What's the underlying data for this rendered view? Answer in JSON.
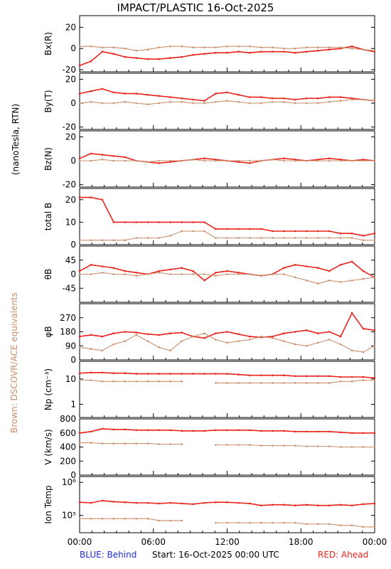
{
  "header": {
    "title": "IMPACT/PLASTIC   16-Oct-2025"
  },
  "side_labels": {
    "units": "(nanoTesla, RTN)",
    "brown_note": "Brown: DSCOVR/ACE equivalents"
  },
  "footer": {
    "blue_label": "BLUE: Behind",
    "start_label": "Start: 16-Oct-2025 00:00 UTC",
    "red_label": "RED: Ahead"
  },
  "colors": {
    "ahead": "#e8231c",
    "ace": "#c9906e",
    "blue": "#1a2ad6"
  },
  "chart_data": {
    "type": "line",
    "x_ticks": [
      "00:00",
      "06:00",
      "12:00",
      "18:00",
      "00:00"
    ],
    "x_range_hours": [
      0,
      24
    ],
    "panels": [
      {
        "id": "bx",
        "ylabel": "Bx(R)",
        "ylim": [
          -22,
          31
        ],
        "yticks": [
          "-20",
          "0",
          "20"
        ],
        "ytick_values": [
          -20,
          0,
          20
        ],
        "series": [
          {
            "values": [
              -16,
              -12,
              -3,
              -5,
              -8,
              -9,
              -10,
              -10,
              -9,
              -8,
              -6,
              -5,
              -4,
              -4,
              -3,
              -4,
              -3,
              -3,
              -3,
              -4,
              -3,
              -2,
              -1,
              0,
              2,
              -1,
              -3
            ]
          },
          {
            "values": [
              2,
              2,
              1,
              1,
              0,
              -2,
              -1,
              1,
              2,
              2,
              1,
              1,
              1,
              2,
              2,
              2,
              1,
              1,
              0,
              0,
              1,
              1,
              1,
              1,
              0,
              -1,
              -2
            ]
          }
        ]
      },
      {
        "id": "by",
        "ylabel": "By(T)",
        "ylim": [
          -22,
          25
        ],
        "yticks": [
          "-20",
          "0",
          "20"
        ],
        "ytick_values": [
          -20,
          0,
          20
        ],
        "series": [
          {
            "values": [
              8,
              10,
              12,
              9,
              8,
              8,
              7,
              6,
              5,
              4,
              3,
              2,
              8,
              9,
              7,
              5,
              5,
              4,
              4,
              3,
              4,
              4,
              5,
              5,
              4,
              3,
              2
            ]
          },
          {
            "values": [
              0,
              1,
              0,
              0,
              1,
              0,
              -1,
              0,
              1,
              1,
              0,
              0,
              1,
              2,
              1,
              0,
              0,
              1,
              1,
              0,
              0,
              0,
              1,
              2,
              3,
              3,
              2
            ]
          }
        ]
      },
      {
        "id": "bz",
        "ylabel": "Bz(N)",
        "ylim": [
          -22,
          25
        ],
        "yticks": [
          "-20",
          "0",
          "20"
        ],
        "ytick_values": [
          -20,
          0,
          20
        ],
        "series": [
          {
            "values": [
              2,
              6,
              5,
              4,
              3,
              0,
              -1,
              -2,
              -1,
              0,
              1,
              2,
              1,
              0,
              -1,
              -2,
              0,
              1,
              2,
              1,
              0,
              1,
              2,
              1,
              0,
              1,
              0
            ]
          },
          {
            "values": [
              0,
              0,
              1,
              0,
              0,
              0,
              -1,
              0,
              0,
              0,
              1,
              0,
              0,
              0,
              0,
              0,
              0,
              1,
              0,
              0,
              0,
              0,
              0,
              0,
              0,
              0,
              0
            ]
          }
        ]
      },
      {
        "id": "btot",
        "ylabel": "total B",
        "ylim": [
          0,
          25
        ],
        "yticks": [
          "0",
          "10",
          "20"
        ],
        "ytick_values": [
          0,
          10,
          20
        ],
        "series": [
          {
            "values": [
              21,
              21,
              20,
              10,
              10,
              10,
              10,
              10,
              10,
              10,
              10,
              10,
              7,
              7,
              7,
              7,
              7,
              6,
              6,
              6,
              6,
              6,
              6,
              5,
              5,
              4,
              5
            ]
          },
          {
            "values": [
              2,
              2,
              2,
              2,
              2,
              3,
              3,
              3,
              4,
              6,
              6,
              6,
              3,
              3,
              3,
              3,
              3,
              3,
              3,
              3,
              3,
              3,
              3,
              3,
              3,
              2,
              2
            ]
          }
        ]
      },
      {
        "id": "theta",
        "ylabel": "θB",
        "ylim": [
          -90,
          90
        ],
        "yticks": [
          "-45",
          "0",
          "45"
        ],
        "ytick_values": [
          -45,
          0,
          45
        ],
        "series": [
          {
            "values": [
              10,
              30,
              25,
              20,
              10,
              5,
              0,
              10,
              15,
              20,
              10,
              -20,
              5,
              10,
              5,
              0,
              -5,
              0,
              20,
              30,
              25,
              20,
              10,
              30,
              40,
              10,
              -10
            ]
          },
          {
            "values": [
              0,
              0,
              5,
              0,
              0,
              -5,
              0,
              5,
              0,
              0,
              0,
              0,
              -5,
              0,
              0,
              0,
              -5,
              0,
              0,
              -10,
              -20,
              -30,
              -20,
              -25,
              -20,
              -15,
              -10
            ]
          }
        ]
      },
      {
        "id": "phi",
        "ylabel": "φB",
        "ylim": [
          0,
          360
        ],
        "yticks": [
          "0",
          "90",
          "180",
          "270"
        ],
        "ytick_values": [
          0,
          90,
          180,
          270
        ],
        "series": [
          {
            "values": [
              150,
              160,
              150,
              170,
              180,
              175,
              165,
              160,
              170,
              175,
              150,
              140,
              170,
              180,
              165,
              150,
              145,
              150,
              170,
              180,
              190,
              170,
              180,
              150,
              300,
              200,
              190
            ]
          },
          {
            "values": [
              80,
              70,
              60,
              100,
              120,
              160,
              120,
              80,
              60,
              120,
              150,
              170,
              130,
              110,
              120,
              130,
              150,
              140,
              120,
              100,
              90,
              110,
              130,
              100,
              60,
              50,
              90
            ]
          }
        ]
      },
      {
        "id": "np",
        "ylabel": "Np (cm⁻³)",
        "scale": "log",
        "ylim": [
          0.3,
          50
        ],
        "yticks": [
          "1",
          "10"
        ],
        "ytick_values": [
          1,
          10
        ],
        "series": [
          {
            "values": [
              17,
              18,
              18,
              17,
              17,
              16,
              16,
              16,
              16,
              16,
              16,
              16,
              16,
              16,
              15,
              14,
              14,
              14,
              14,
              13,
              13,
              13,
              13,
              12,
              12,
              12,
              11
            ]
          },
          {
            "values": [
              9,
              9,
              8,
              8,
              8,
              8,
              8,
              8,
              8,
              8,
              null,
              null,
              7,
              7,
              7,
              7,
              7,
              7,
              7,
              7,
              7,
              7,
              7,
              8,
              8,
              9,
              9
            ]
          }
        ]
      },
      {
        "id": "v",
        "ylabel": "V (km/s)",
        "ylim": [
          0,
          800
        ],
        "yticks": [
          "0",
          "200",
          "400",
          "600",
          "800"
        ],
        "ytick_values": [
          0,
          200,
          400,
          600,
          800
        ],
        "series": [
          {
            "values": [
              600,
              620,
              660,
              650,
              650,
              640,
              640,
              640,
              640,
              630,
              630,
              630,
              640,
              640,
              640,
              640,
              630,
              630,
              630,
              620,
              620,
              620,
              620,
              610,
              600,
              600,
              600
            ]
          },
          {
            "values": [
              460,
              460,
              450,
              450,
              450,
              450,
              450,
              440,
              440,
              440,
              null,
              null,
              430,
              430,
              430,
              430,
              420,
              420,
              420,
              420,
              410,
              410,
              410,
              400,
              400,
              400,
              400
            ]
          }
        ]
      },
      {
        "id": "temp",
        "ylabel": "Ion Temp",
        "scale": "log",
        "ylim": [
          30000,
          1500000
        ],
        "yticks": [
          "10⁵",
          "10⁶"
        ],
        "ytick_values": [
          100000,
          1000000
        ],
        "series": [
          {
            "values": [
              250000,
              240000,
              280000,
              260000,
              250000,
              240000,
              240000,
              230000,
              240000,
              230000,
              220000,
              240000,
              250000,
              250000,
              240000,
              230000,
              200000,
              210000,
              210000,
              200000,
              210000,
              200000,
              200000,
              210000,
              200000,
              220000,
              230000
            ]
          },
          {
            "values": [
              80000,
              80000,
              80000,
              80000,
              80000,
              80000,
              80000,
              70000,
              70000,
              70000,
              null,
              null,
              60000,
              60000,
              60000,
              60000,
              60000,
              60000,
              60000,
              60000,
              55000,
              55000,
              55000,
              50000,
              50000,
              45000,
              45000
            ]
          }
        ]
      }
    ]
  }
}
